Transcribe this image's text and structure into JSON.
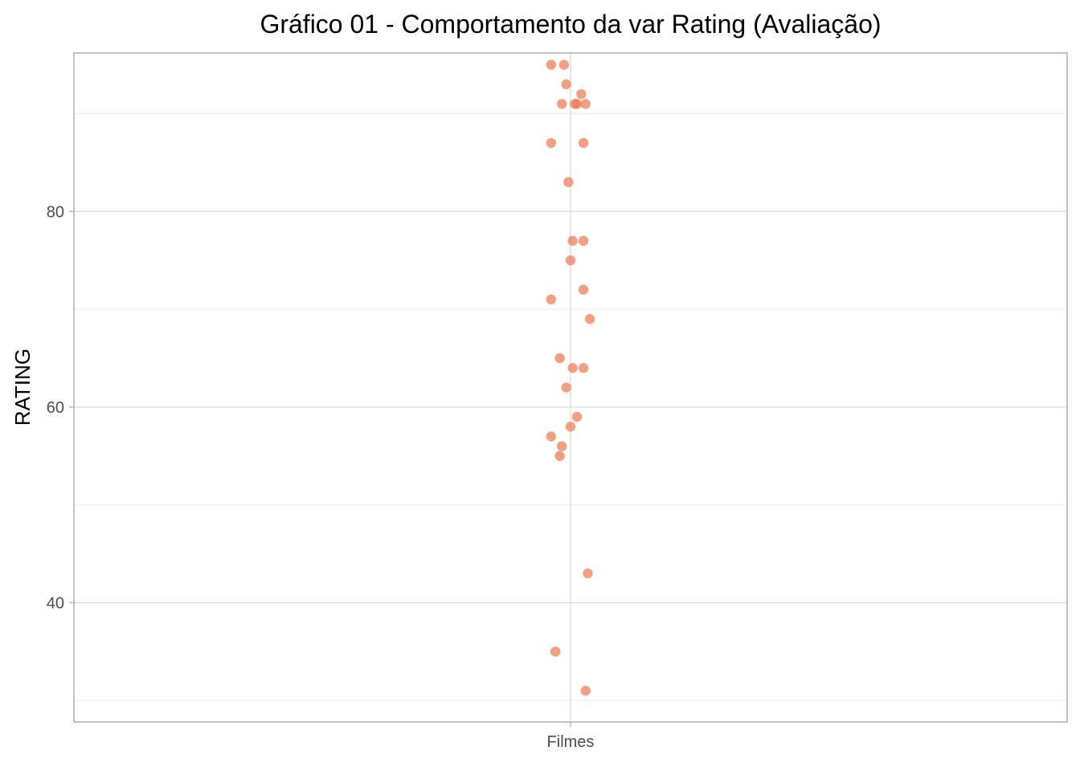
{
  "chart_data": {
    "type": "scatter",
    "title": "Gráfico 01 - Comportamento da var Rating (Avaliação)",
    "xlabel": "",
    "ylabel": "RATING",
    "categories": [
      "Filmes"
    ],
    "ylim": [
      27.8,
      96.2
    ],
    "y_ticks": [
      40,
      60,
      80
    ],
    "y_minor_ticks": [
      30,
      50,
      70,
      90
    ],
    "grid": true,
    "point_color": "#ee7650",
    "series": [
      {
        "points": [
          {
            "x": -0.09,
            "y": 95
          },
          {
            "x": -0.03,
            "y": 95
          },
          {
            "x": -0.02,
            "y": 93
          },
          {
            "x": 0.05,
            "y": 92
          },
          {
            "x": -0.04,
            "y": 91
          },
          {
            "x": 0.02,
            "y": 91
          },
          {
            "x": 0.03,
            "y": 91
          },
          {
            "x": 0.07,
            "y": 91
          },
          {
            "x": -0.09,
            "y": 87
          },
          {
            "x": 0.06,
            "y": 87
          },
          {
            "x": -0.01,
            "y": 83
          },
          {
            "x": 0.01,
            "y": 77
          },
          {
            "x": 0.06,
            "y": 77
          },
          {
            "x": 0.0,
            "y": 75
          },
          {
            "x": 0.06,
            "y": 72
          },
          {
            "x": -0.09,
            "y": 71
          },
          {
            "x": 0.09,
            "y": 69
          },
          {
            "x": -0.05,
            "y": 65
          },
          {
            "x": 0.01,
            "y": 64
          },
          {
            "x": 0.06,
            "y": 64
          },
          {
            "x": -0.02,
            "y": 62
          },
          {
            "x": 0.03,
            "y": 59
          },
          {
            "x": 0.0,
            "y": 58
          },
          {
            "x": -0.09,
            "y": 57
          },
          {
            "x": -0.04,
            "y": 56
          },
          {
            "x": -0.05,
            "y": 55
          },
          {
            "x": 0.08,
            "y": 43
          },
          {
            "x": -0.07,
            "y": 35
          },
          {
            "x": 0.07,
            "y": 31
          }
        ]
      }
    ]
  }
}
